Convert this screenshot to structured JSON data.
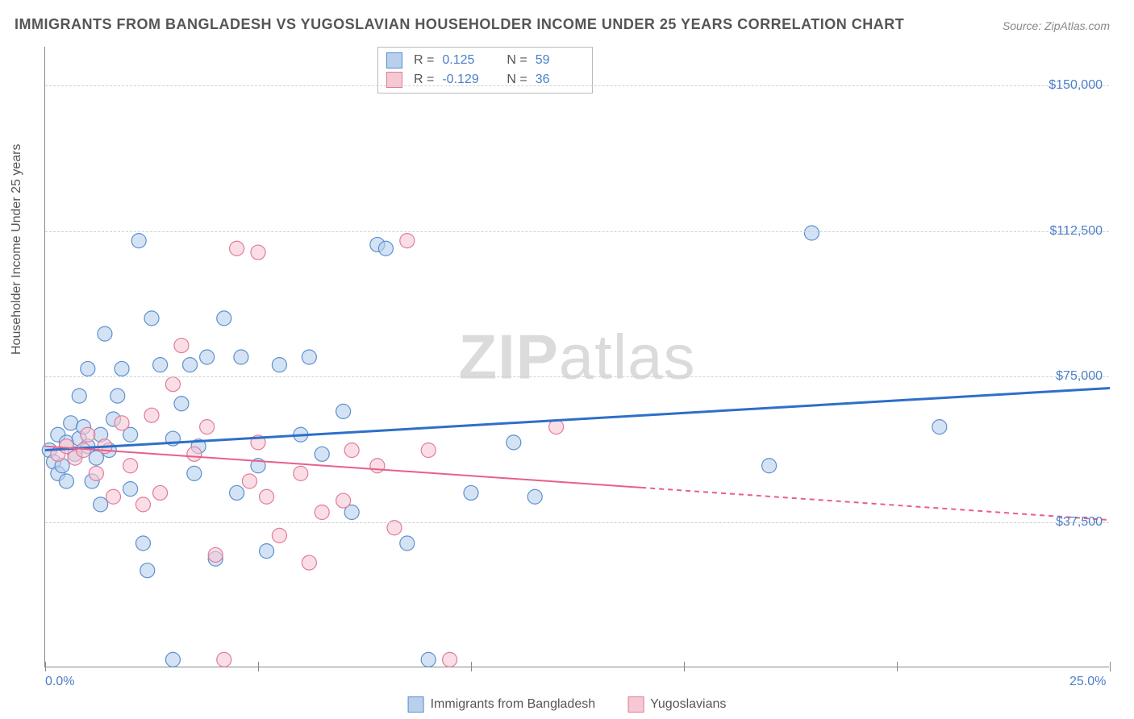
{
  "title": "IMMIGRANTS FROM BANGLADESH VS YUGOSLAVIAN HOUSEHOLDER INCOME UNDER 25 YEARS CORRELATION CHART",
  "source": "Source: ZipAtlas.com",
  "watermark_zip": "ZIP",
  "watermark_atlas": "atlas",
  "chart": {
    "type": "scatter",
    "ylabel": "Householder Income Under 25 years",
    "xlim": [
      0,
      25
    ],
    "ylim": [
      0,
      160000
    ],
    "x_tick_positions": [
      0,
      5,
      10,
      15,
      20,
      25
    ],
    "x_tick_labels_shown": {
      "0": "0.0%",
      "25": "25.0%"
    },
    "y_gridlines": [
      37500,
      75000,
      112500,
      150000
    ],
    "y_tick_labels": {
      "37500": "$37,500",
      "75000": "$75,000",
      "112500": "$112,500",
      "150000": "$150,000"
    },
    "background_color": "#ffffff",
    "grid_color": "#d0d0d0",
    "axis_color": "#888888",
    "series": [
      {
        "name": "Immigrants from Bangladesh",
        "color_fill": "#b8d0ec",
        "color_stroke": "#5b8fd0",
        "marker_radius": 9,
        "fill_opacity": 0.6,
        "r_label": "R =",
        "r_value": "0.125",
        "n_label": "N =",
        "n_value": "59",
        "trend": {
          "x1": 0,
          "y1": 56000,
          "x2": 25,
          "y2": 72000,
          "solid_until_x": 25,
          "color": "#2e6fc9",
          "width": 3
        },
        "points": [
          [
            0.1,
            56000
          ],
          [
            0.2,
            53000
          ],
          [
            0.3,
            60000
          ],
          [
            0.3,
            50000
          ],
          [
            0.4,
            52000
          ],
          [
            0.5,
            58000
          ],
          [
            0.5,
            48000
          ],
          [
            0.6,
            63000
          ],
          [
            0.7,
            55000
          ],
          [
            0.8,
            59000
          ],
          [
            0.8,
            70000
          ],
          [
            1.0,
            57000
          ],
          [
            1.0,
            77000
          ],
          [
            1.1,
            48000
          ],
          [
            1.2,
            54000
          ],
          [
            1.3,
            42000
          ],
          [
            1.4,
            86000
          ],
          [
            1.5,
            56000
          ],
          [
            1.6,
            64000
          ],
          [
            1.7,
            70000
          ],
          [
            1.8,
            77000
          ],
          [
            2.0,
            60000
          ],
          [
            2.0,
            46000
          ],
          [
            2.2,
            110000
          ],
          [
            2.3,
            32000
          ],
          [
            2.4,
            25000
          ],
          [
            2.5,
            90000
          ],
          [
            2.7,
            78000
          ],
          [
            3.0,
            59000
          ],
          [
            3.0,
            2000
          ],
          [
            3.2,
            68000
          ],
          [
            3.4,
            78000
          ],
          [
            3.5,
            50000
          ],
          [
            3.6,
            57000
          ],
          [
            3.8,
            80000
          ],
          [
            4.0,
            28000
          ],
          [
            4.2,
            90000
          ],
          [
            4.5,
            45000
          ],
          [
            4.6,
            80000
          ],
          [
            5.0,
            52000
          ],
          [
            5.2,
            30000
          ],
          [
            5.5,
            78000
          ],
          [
            6.0,
            60000
          ],
          [
            6.2,
            80000
          ],
          [
            6.5,
            55000
          ],
          [
            7.0,
            66000
          ],
          [
            7.2,
            40000
          ],
          [
            7.8,
            109000
          ],
          [
            8.0,
            108000
          ],
          [
            8.5,
            32000
          ],
          [
            9.0,
            2000
          ],
          [
            10.0,
            45000
          ],
          [
            11.0,
            58000
          ],
          [
            11.5,
            44000
          ],
          [
            17.0,
            52000
          ],
          [
            18.0,
            112000
          ],
          [
            21.0,
            62000
          ],
          [
            0.9,
            62000
          ],
          [
            1.3,
            60000
          ]
        ]
      },
      {
        "name": "Yugoslavians",
        "color_fill": "#f6c8d3",
        "color_stroke": "#e27a99",
        "marker_radius": 9,
        "fill_opacity": 0.6,
        "r_label": "R =",
        "r_value": "-0.129",
        "n_label": "N =",
        "n_value": "36",
        "trend": {
          "x1": 0,
          "y1": 57000,
          "x2": 25,
          "y2": 38000,
          "solid_until_x": 14,
          "color": "#e95f88",
          "width": 2
        },
        "points": [
          [
            0.3,
            55000
          ],
          [
            0.5,
            57000
          ],
          [
            0.7,
            54000
          ],
          [
            0.9,
            56000
          ],
          [
            1.0,
            60000
          ],
          [
            1.2,
            50000
          ],
          [
            1.4,
            57000
          ],
          [
            1.6,
            44000
          ],
          [
            1.8,
            63000
          ],
          [
            2.0,
            52000
          ],
          [
            2.3,
            42000
          ],
          [
            2.5,
            65000
          ],
          [
            2.7,
            45000
          ],
          [
            3.0,
            73000
          ],
          [
            3.2,
            83000
          ],
          [
            3.5,
            55000
          ],
          [
            3.8,
            62000
          ],
          [
            4.0,
            29000
          ],
          [
            4.2,
            2000
          ],
          [
            4.5,
            108000
          ],
          [
            4.8,
            48000
          ],
          [
            5.0,
            107000
          ],
          [
            5.0,
            58000
          ],
          [
            5.2,
            44000
          ],
          [
            5.5,
            34000
          ],
          [
            6.0,
            50000
          ],
          [
            6.2,
            27000
          ],
          [
            6.5,
            40000
          ],
          [
            7.0,
            43000
          ],
          [
            7.2,
            56000
          ],
          [
            7.8,
            52000
          ],
          [
            8.2,
            36000
          ],
          [
            8.5,
            110000
          ],
          [
            9.0,
            56000
          ],
          [
            9.5,
            2000
          ],
          [
            12.0,
            62000
          ]
        ]
      }
    ]
  }
}
